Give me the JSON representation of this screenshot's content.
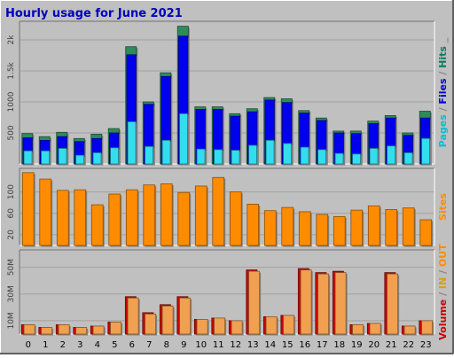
{
  "chart_data": {
    "type": "bar",
    "title": "Hourly usage for June 2021",
    "categories": [
      "0",
      "1",
      "2",
      "3",
      "4",
      "5",
      "6",
      "7",
      "8",
      "9",
      "10",
      "11",
      "12",
      "13",
      "14",
      "15",
      "16",
      "17",
      "18",
      "19",
      "20",
      "21",
      "22",
      "23"
    ],
    "panels": [
      {
        "id": "hits",
        "ylabel_parts": [
          "Pages",
          " / ",
          "Files",
          " / ",
          "Hits",
          " _"
        ],
        "ylabel_colors": [
          "#00C0D0",
          "#808080",
          "#0000D0",
          "#808080",
          "#00805A",
          "#808080"
        ],
        "ylim": [
          0,
          2300
        ],
        "yticks": [
          500,
          1000,
          1500,
          2000
        ],
        "ytick_labels": [
          "500",
          "1000",
          "1.5k",
          "2k"
        ],
        "series": [
          {
            "name": "Hits",
            "color": "#2E8B5A",
            "values": [
              490,
              440,
              510,
              410,
              480,
              570,
              1890,
              1000,
              1470,
              2220,
              920,
              920,
              810,
              890,
              1070,
              1050,
              860,
              740,
              530,
              530,
              690,
              780,
              500,
              850
            ]
          },
          {
            "name": "Files",
            "color": "#0000EE",
            "values": [
              420,
              380,
              440,
              360,
              410,
              500,
              1760,
              960,
              1410,
              2060,
              880,
              880,
              770,
              840,
              1030,
              990,
              820,
              700,
              500,
              490,
              650,
              740,
              460,
              740
            ]
          },
          {
            "name": "Pages",
            "color": "#33DDEE",
            "values": [
              210,
              210,
              250,
              140,
              180,
              260,
              680,
              280,
              380,
              810,
              240,
              230,
              220,
              300,
              380,
              330,
              270,
              230,
              170,
              160,
              250,
              290,
              180,
              410
            ]
          }
        ]
      },
      {
        "id": "sites",
        "ylabel_parts": [
          "Sites"
        ],
        "ylabel_colors": [
          "#FF8C00"
        ],
        "ylim": [
          0,
          144
        ],
        "yticks": [
          20,
          60,
          100
        ],
        "ytick_labels": [
          "20",
          "60",
          "100"
        ],
        "series": [
          {
            "name": "Sites",
            "color": "#FF8C00",
            "values": [
              136,
              124,
              103,
              104,
              76,
              96,
              104,
              113,
              115,
              99,
              111,
              127,
              100,
              77,
              65,
              71,
              63,
              58,
              54,
              66,
              74,
              67,
              70,
              48
            ]
          }
        ]
      },
      {
        "id": "volume",
        "ylabel_parts": [
          "Volume",
          " / ",
          "IN",
          " / ",
          "OUT"
        ],
        "ylabel_colors": [
          "#CC0000",
          "#808080",
          "#D4A017",
          "#808080",
          "#FF8C00"
        ],
        "ylim": [
          0,
          63000000
        ],
        "yticks": [
          10000000,
          30000000,
          50000000
        ],
        "ytick_labels": [
          "10M",
          "30M",
          "50M"
        ],
        "series": [
          {
            "name": "Volume",
            "color": "#CC0000",
            "values": [
              7000000,
              5000000,
              7000000,
              5000000,
              6000000,
              9000000,
              28000000,
              16000000,
              22000000,
              28000000,
              11000000,
              12000000,
              10000000,
              48000000,
              13000000,
              14000000,
              49000000,
              46000000,
              47000000,
              7000000,
              8000000,
              46000000,
              6000000,
              10000000
            ]
          },
          {
            "name": "OUT",
            "color": "#F0A050",
            "values": [
              7000000,
              5000000,
              7000000,
              5000000,
              6000000,
              9000000,
              27000000,
              15000000,
              21000000,
              27000000,
              11000000,
              12000000,
              10000000,
              47000000,
              13000000,
              14000000,
              48000000,
              45000000,
              46000000,
              7000000,
              8000000,
              45000000,
              6000000,
              10000000
            ]
          }
        ]
      }
    ]
  },
  "colors": {
    "background": "#C0C0C0",
    "title": "#0000C0",
    "grid": "#A0A0A0"
  }
}
